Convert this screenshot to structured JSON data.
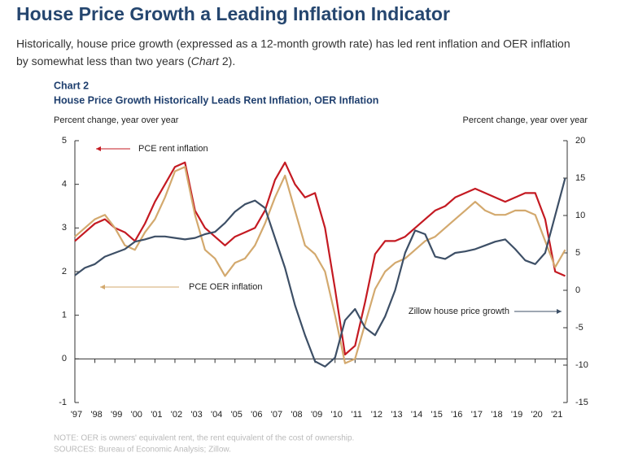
{
  "heading": "House Price Growth a Leading Inflation Indicator",
  "intro": [
    "Historically, house price growth (expressed as a 12-month growth rate) has led rent inflation and OER inflation",
    "by somewhat less than two years (",
    "Chart",
    " 2)."
  ],
  "chart_data": {
    "type": "line",
    "label": "Chart 2",
    "title": "House Price Growth Historically Leads Rent Inflation, OER Inflation",
    "y_label": "Percent change, year over year",
    "y2_label": "Percent change, year over year",
    "x": [
      1997,
      1997.5,
      1998,
      1998.5,
      1999,
      1999.5,
      2000,
      2000.5,
      2001,
      2001.5,
      2002,
      2002.5,
      2003,
      2003.5,
      2004,
      2004.5,
      2005,
      2005.5,
      2006,
      2006.5,
      2007,
      2007.5,
      2008,
      2008.5,
      2009,
      2009.5,
      2010,
      2010.5,
      2011,
      2011.5,
      2012,
      2012.5,
      2013,
      2013.5,
      2014,
      2014.5,
      2015,
      2015.5,
      2016,
      2016.5,
      2017,
      2017.5,
      2018,
      2018.5,
      2019,
      2019.5,
      2020,
      2020.5,
      2021,
      2021.5
    ],
    "series": [
      {
        "name": "PCE rent inflation",
        "color": "#c41a22",
        "axis": "y",
        "values": [
          2.7,
          2.9,
          3.1,
          3.2,
          3.0,
          2.9,
          2.7,
          3.1,
          3.6,
          4.0,
          4.4,
          4.5,
          3.4,
          3.0,
          2.8,
          2.6,
          2.8,
          2.9,
          3.0,
          3.4,
          4.1,
          4.5,
          4.0,
          3.7,
          3.8,
          3.0,
          1.6,
          0.1,
          0.3,
          1.3,
          2.4,
          2.7,
          2.7,
          2.8,
          3.0,
          3.2,
          3.4,
          3.5,
          3.7,
          3.8,
          3.9,
          3.8,
          3.7,
          3.6,
          3.7,
          3.8,
          3.8,
          3.2,
          2.0,
          1.9
        ]
      },
      {
        "name": "PCE OER inflation",
        "color": "#d3a96e",
        "axis": "y",
        "values": [
          2.8,
          3.0,
          3.2,
          3.3,
          3.0,
          2.6,
          2.5,
          2.9,
          3.2,
          3.7,
          4.3,
          4.4,
          3.3,
          2.5,
          2.3,
          1.9,
          2.2,
          2.3,
          2.6,
          3.1,
          3.7,
          4.2,
          3.4,
          2.6,
          2.4,
          2.0,
          1.0,
          -0.1,
          0.0,
          0.8,
          1.6,
          2.0,
          2.2,
          2.3,
          2.5,
          2.7,
          2.8,
          3.0,
          3.2,
          3.4,
          3.6,
          3.4,
          3.3,
          3.3,
          3.4,
          3.4,
          3.3,
          2.7,
          2.1,
          2.5
        ]
      },
      {
        "name": "Zillow house price growth",
        "color": "#3d4f66",
        "axis": "y2",
        "values": [
          2,
          3,
          3.5,
          4.5,
          5,
          5.5,
          6.5,
          6.8,
          7.2,
          7.2,
          7,
          6.8,
          7,
          7.5,
          7.8,
          9,
          10.5,
          11.5,
          12,
          11,
          7,
          3,
          -2,
          -6,
          -9.5,
          -10.2,
          -9,
          -4,
          -2.5,
          -5,
          -6,
          -3.5,
          0,
          5,
          8,
          7.5,
          4.5,
          4.2,
          5,
          5.2,
          5.5,
          6,
          6.5,
          6.8,
          5.5,
          4,
          3.5,
          5,
          10,
          15
        ]
      }
    ],
    "xlim": [
      1997,
      2021.6
    ],
    "xticks": [
      {
        "value": 1997,
        "label": "'97"
      },
      {
        "value": 1998,
        "label": "'98"
      },
      {
        "value": 1999,
        "label": "'99"
      },
      {
        "value": 2000,
        "label": "'00"
      },
      {
        "value": 2001,
        "label": "'01"
      },
      {
        "value": 2002,
        "label": "'02"
      },
      {
        "value": 2003,
        "label": "'03"
      },
      {
        "value": 2004,
        "label": "'04"
      },
      {
        "value": 2005,
        "label": "'05"
      },
      {
        "value": 2006,
        "label": "'06"
      },
      {
        "value": 2007,
        "label": "'07"
      },
      {
        "value": 2008,
        "label": "'08"
      },
      {
        "value": 2009,
        "label": "'09"
      },
      {
        "value": 2010,
        "label": "'10"
      },
      {
        "value": 2011,
        "label": "'11"
      },
      {
        "value": 2012,
        "label": "'12"
      },
      {
        "value": 2013,
        "label": "'13"
      },
      {
        "value": 2014,
        "label": "'14"
      },
      {
        "value": 2015,
        "label": "'15"
      },
      {
        "value": 2016,
        "label": "'16"
      },
      {
        "value": 2017,
        "label": "'17"
      },
      {
        "value": 2018,
        "label": "'18"
      },
      {
        "value": 2019,
        "label": "'19"
      },
      {
        "value": 2020,
        "label": "'20"
      },
      {
        "value": 2021,
        "label": "'21"
      }
    ],
    "ylim": [
      -1,
      5
    ],
    "yticks": [
      -1,
      0,
      1,
      2,
      3,
      4,
      5
    ],
    "y2lim": [
      -15,
      20
    ],
    "y2ticks": [
      -15,
      -10,
      -5,
      0,
      5,
      10,
      15,
      20
    ],
    "note": "NOTE: OER is owners' equivalent rent, the rent equivalent of the cost of ownership.",
    "sources": "SOURCES: Bureau of Economic Analysis; Zillow."
  }
}
